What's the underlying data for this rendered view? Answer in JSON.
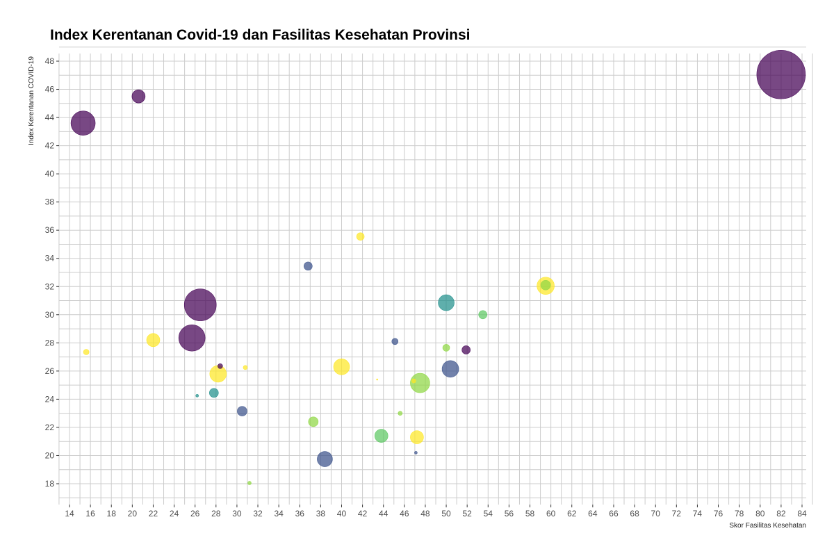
{
  "chart_data": {
    "type": "scatter",
    "title": "Index Kerentanan Covid-19 dan Fasilitas Kesehatan Provinsi",
    "xlabel": "Skor Fasilitas Kesehatan",
    "ylabel": "Index Kerentanan COVID-19",
    "xlim": [
      13.2,
      85
    ],
    "ylim": [
      17,
      48.5
    ],
    "x_ticks": [
      14,
      16,
      18,
      20,
      22,
      24,
      26,
      28,
      30,
      32,
      34,
      36,
      38,
      40,
      42,
      44,
      46,
      48,
      50,
      52,
      54,
      56,
      58,
      60,
      62,
      64,
      66,
      68,
      70,
      72,
      74,
      76,
      78,
      80,
      82,
      84
    ],
    "y_ticks": [
      18,
      20,
      22,
      24,
      26,
      28,
      30,
      32,
      34,
      36,
      38,
      40,
      42,
      44,
      46,
      48
    ],
    "grid": true,
    "legend": "none",
    "colors": [
      "#440154",
      "#3b528b",
      "#21908c",
      "#5dc863",
      "#8fd744",
      "#fde725"
    ],
    "points": [
      {
        "x": 82.0,
        "y": 47.05,
        "size": 35.0,
        "color": "#440154"
      },
      {
        "x": 15.3,
        "y": 43.6,
        "size": 17.5,
        "color": "#440154"
      },
      {
        "x": 20.6,
        "y": 45.5,
        "size": 9.5,
        "color": "#440154"
      },
      {
        "x": 26.5,
        "y": 30.7,
        "size": 23.0,
        "color": "#440154"
      },
      {
        "x": 25.7,
        "y": 28.35,
        "size": 19.0,
        "color": "#440154"
      },
      {
        "x": 15.6,
        "y": 27.35,
        "size": 4.0,
        "color": "#fde725"
      },
      {
        "x": 22.0,
        "y": 28.2,
        "size": 9.5,
        "color": "#fde725"
      },
      {
        "x": 28.4,
        "y": 26.35,
        "size": 3.5,
        "color": "#440154"
      },
      {
        "x": 28.2,
        "y": 25.8,
        "size": 12.0,
        "color": "#fde725"
      },
      {
        "x": 27.8,
        "y": 24.45,
        "size": 6.5,
        "color": "#21908c"
      },
      {
        "x": 26.2,
        "y": 24.25,
        "size": 2.0,
        "color": "#21908c"
      },
      {
        "x": 30.5,
        "y": 23.15,
        "size": 7.0,
        "color": "#3b528b"
      },
      {
        "x": 30.8,
        "y": 26.25,
        "size": 3.0,
        "color": "#fde725"
      },
      {
        "x": 31.2,
        "y": 18.05,
        "size": 2.5,
        "color": "#8fd744"
      },
      {
        "x": 36.8,
        "y": 33.45,
        "size": 6.0,
        "color": "#3b528b"
      },
      {
        "x": 41.8,
        "y": 35.55,
        "size": 5.5,
        "color": "#fde725"
      },
      {
        "x": 40.0,
        "y": 26.3,
        "size": 11.5,
        "color": "#fde725"
      },
      {
        "x": 37.3,
        "y": 22.4,
        "size": 7.0,
        "color": "#8fd744"
      },
      {
        "x": 38.4,
        "y": 19.75,
        "size": 11.0,
        "color": "#3b528b"
      },
      {
        "x": 43.4,
        "y": 25.4,
        "size": 1.0,
        "color": "#fde725"
      },
      {
        "x": 43.8,
        "y": 21.4,
        "size": 9.5,
        "color": "#5dc863"
      },
      {
        "x": 45.1,
        "y": 28.1,
        "size": 4.5,
        "color": "#3b528b"
      },
      {
        "x": 45.6,
        "y": 23.0,
        "size": 3.0,
        "color": "#8fd744"
      },
      {
        "x": 46.9,
        "y": 25.3,
        "size": 3.0,
        "color": "#fde725"
      },
      {
        "x": 47.1,
        "y": 20.2,
        "size": 2.0,
        "color": "#3b528b"
      },
      {
        "x": 47.2,
        "y": 21.3,
        "size": 9.5,
        "color": "#fde725"
      },
      {
        "x": 47.5,
        "y": 25.15,
        "size": 14.0,
        "color": "#8fd744"
      },
      {
        "x": 50.0,
        "y": 30.85,
        "size": 11.5,
        "color": "#21908c"
      },
      {
        "x": 50.0,
        "y": 27.65,
        "size": 5.0,
        "color": "#8fd744"
      },
      {
        "x": 50.4,
        "y": 26.15,
        "size": 12.0,
        "color": "#3b528b"
      },
      {
        "x": 51.9,
        "y": 27.5,
        "size": 6.0,
        "color": "#440154"
      },
      {
        "x": 53.5,
        "y": 30.0,
        "size": 6.0,
        "color": "#5dc863"
      },
      {
        "x": 59.5,
        "y": 32.05,
        "size": 12.5,
        "color": "#fde725"
      },
      {
        "x": 59.5,
        "y": 32.1,
        "size": 7.0,
        "color": "#8fd744"
      }
    ]
  }
}
